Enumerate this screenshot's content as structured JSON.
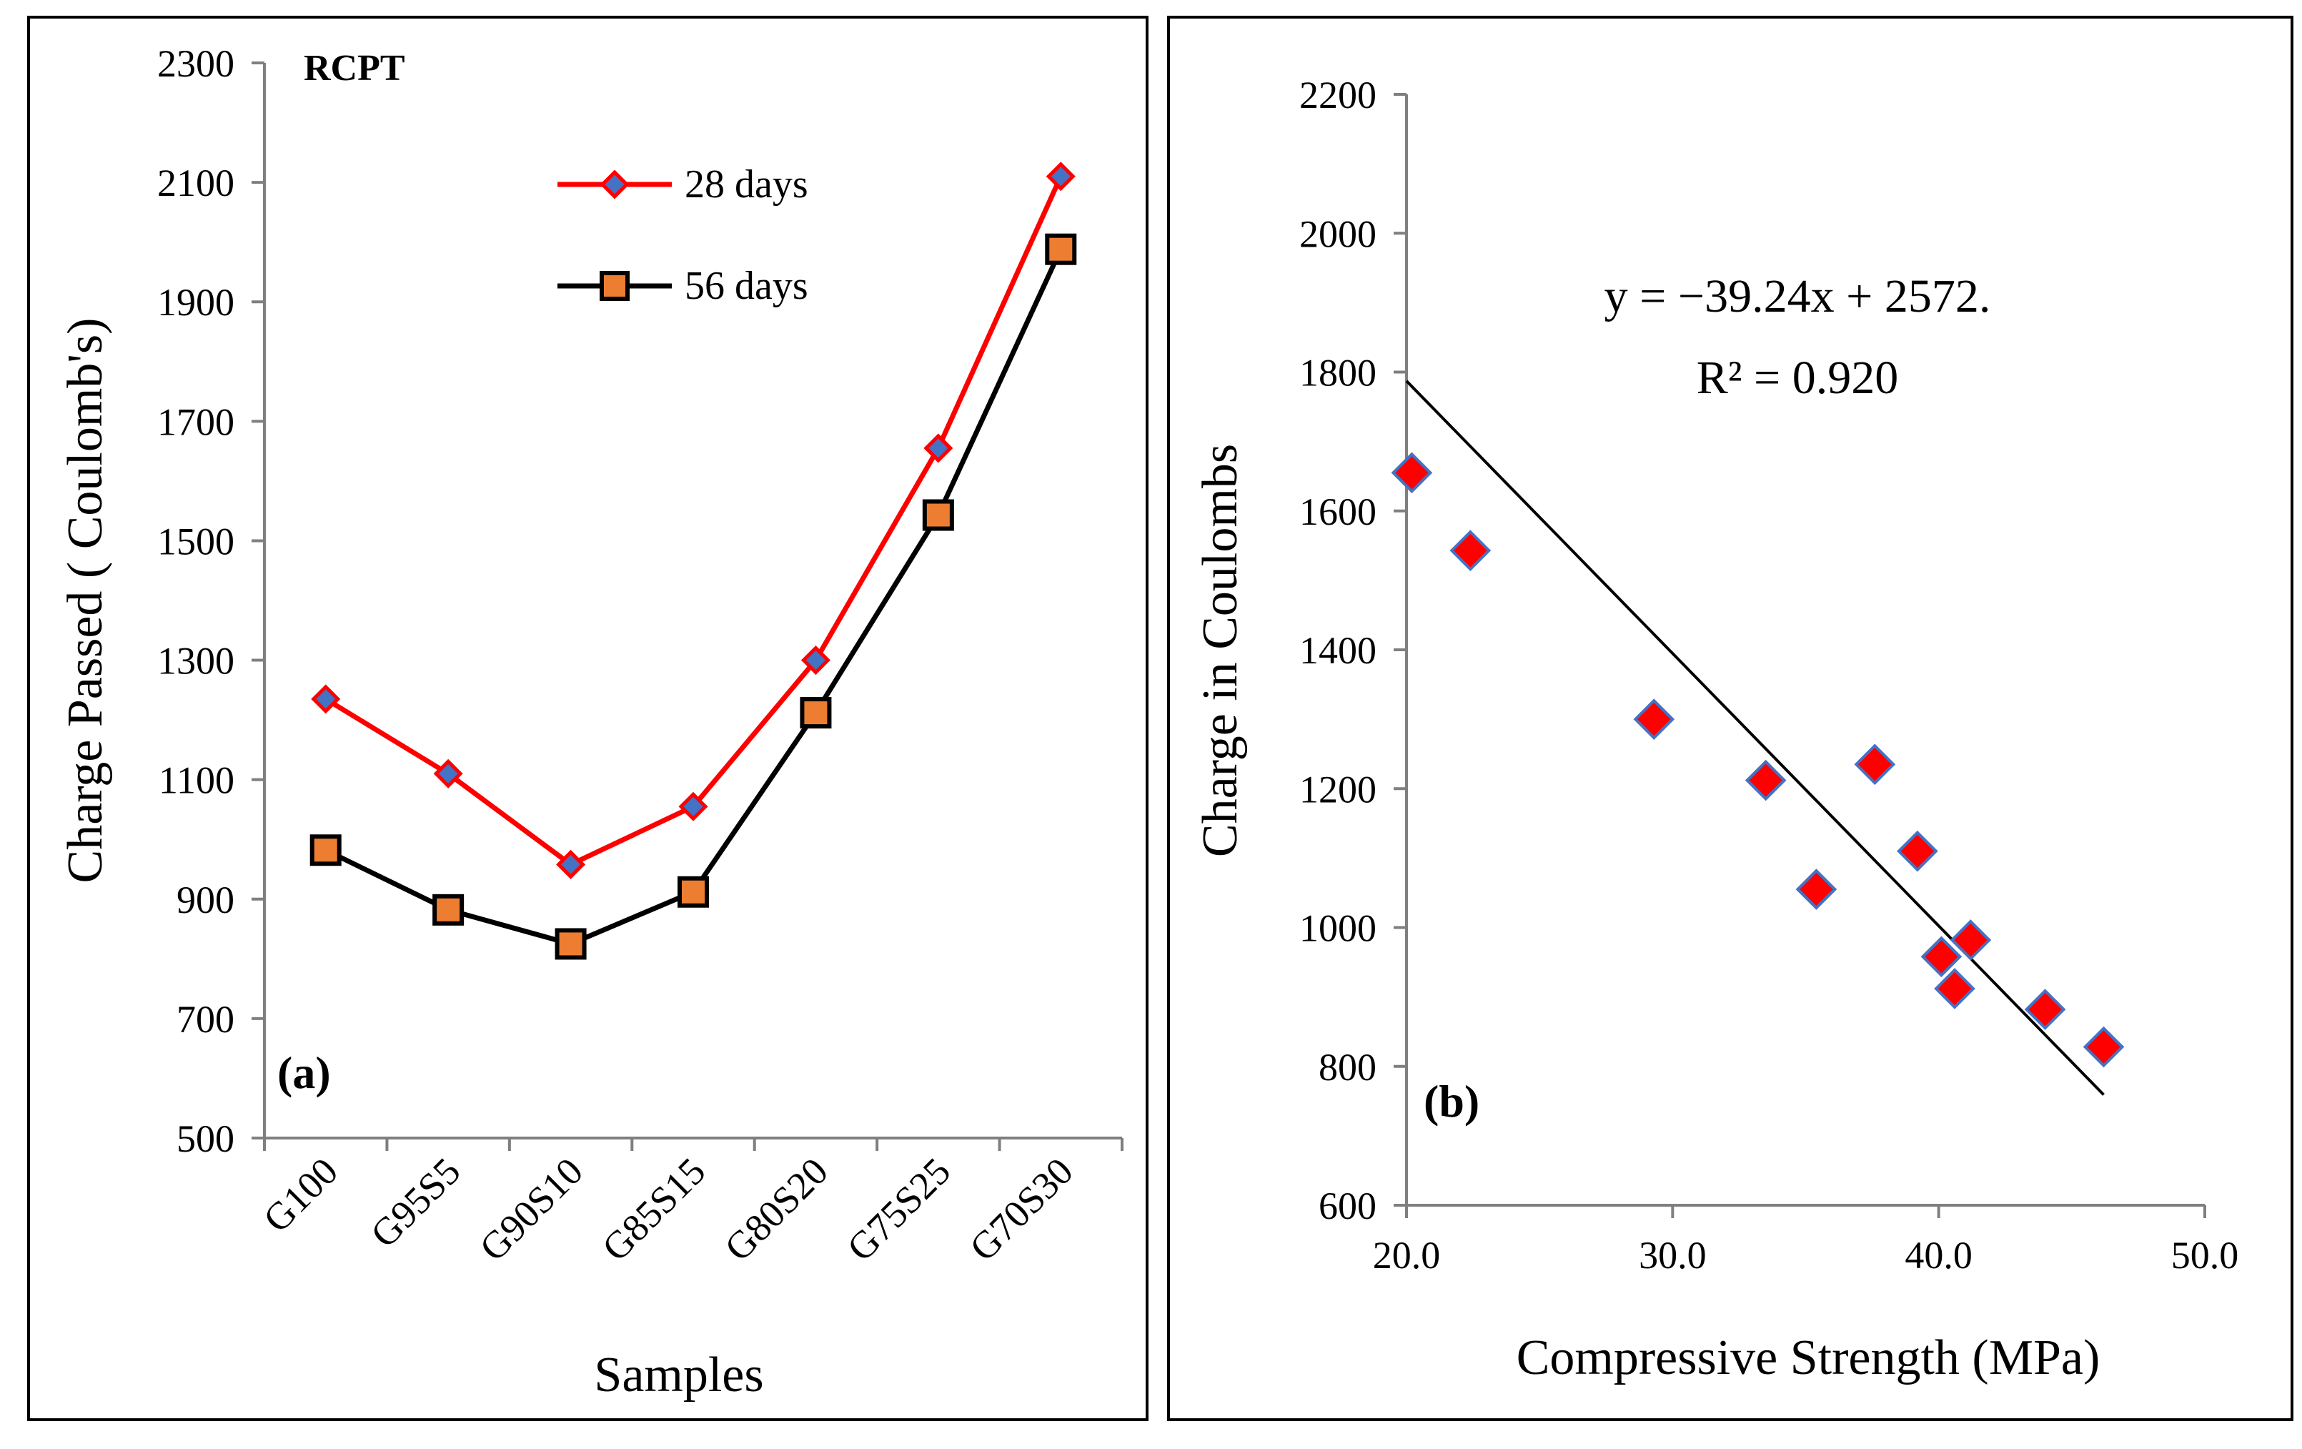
{
  "chart_data": [
    {
      "type": "line",
      "panel_label": "(a)",
      "title": "RCPT",
      "xlabel": "Samples",
      "ylabel": "Charge Passed ( Coulomb's)",
      "categories": [
        "G100",
        "G95S5",
        "G90S10",
        "G85S15",
        "G80S20",
        "G75S25",
        "G70S30"
      ],
      "ylim": [
        500,
        2300
      ],
      "yticks": [
        500,
        700,
        900,
        1100,
        1300,
        1500,
        1700,
        1900,
        2100,
        2300
      ],
      "legend_position": "top-right",
      "series": [
        {
          "name": "28 days",
          "color": "#ff0000",
          "marker": "diamond",
          "marker_color": "#4472c4",
          "values": [
            1235,
            1110,
            958,
            1055,
            1300,
            1655,
            2110
          ]
        },
        {
          "name": "56 days",
          "color": "#000000",
          "marker": "square",
          "marker_color": "#ed7d31",
          "values": [
            982,
            882,
            825,
            912,
            1212,
            1543,
            1988
          ]
        }
      ]
    },
    {
      "type": "scatter",
      "panel_label": "(b)",
      "xlabel": "Compressive Strength (MPa)",
      "ylabel": "Charge in Coulombs",
      "xlim": [
        20.0,
        50.0
      ],
      "xticks": [
        "20.0",
        "30.0",
        "40.0",
        "50.0"
      ],
      "ylim": [
        600,
        2200
      ],
      "yticks": [
        600,
        800,
        1000,
        1200,
        1400,
        1600,
        1800,
        2000,
        2200
      ],
      "equation": "y = −39.24x + 2572.",
      "r_squared": "R² = 0.920",
      "trendline": {
        "slope": -39.24,
        "intercept": 2572,
        "x_start": 20.0,
        "x_end": 46.2
      },
      "marker_color": "#ff0000",
      "marker_edge": "#4472c4",
      "points": [
        {
          "x": 20.2,
          "y": 1655
        },
        {
          "x": 22.4,
          "y": 1543
        },
        {
          "x": 29.3,
          "y": 1300
        },
        {
          "x": 33.5,
          "y": 1212
        },
        {
          "x": 35.4,
          "y": 1055
        },
        {
          "x": 37.6,
          "y": 1235
        },
        {
          "x": 39.2,
          "y": 1110
        },
        {
          "x": 40.1,
          "y": 958
        },
        {
          "x": 40.6,
          "y": 912
        },
        {
          "x": 41.2,
          "y": 982
        },
        {
          "x": 44.0,
          "y": 882
        },
        {
          "x": 46.2,
          "y": 828
        }
      ]
    }
  ]
}
